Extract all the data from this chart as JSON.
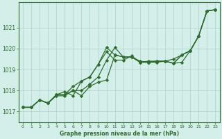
{
  "xlabel": "Graphe pression niveau de la mer (hPa)",
  "xlim": [
    -0.5,
    23.5
  ],
  "ylim": [
    1016.5,
    1022.2
  ],
  "yticks": [
    1017,
    1018,
    1019,
    1020,
    1021
  ],
  "xticks": [
    0,
    1,
    2,
    3,
    4,
    5,
    6,
    7,
    8,
    9,
    10,
    11,
    12,
    13,
    14,
    15,
    16,
    17,
    18,
    19,
    20,
    21,
    22,
    23
  ],
  "bg_color": "#d4eeea",
  "plot_bg_color": "#d4eeea",
  "grid_color": "#aad4cc",
  "line_color": "#2d6e2d",
  "tick_color": "#2d6e2d",
  "spine_color": "#2d6e2d",
  "lines": [
    [
      1017.2,
      1017.2,
      1017.55,
      1017.4,
      1017.75,
      1017.75,
      1018.0,
      1017.75,
      1018.2,
      1018.4,
      1018.5,
      1019.7,
      1019.6,
      1019.6,
      1019.4,
      1019.35,
      1019.35,
      1019.4,
      1019.5,
      1019.7,
      1019.9,
      1020.6,
      1021.8,
      1021.85
    ],
    [
      1017.2,
      1017.2,
      1017.55,
      1017.4,
      1017.8,
      1017.95,
      1017.75,
      1018.45,
      1018.65,
      1019.25,
      1020.05,
      1019.7,
      1019.6,
      1019.6,
      1019.35,
      1019.35,
      1019.4,
      1019.4,
      1019.3,
      1019.35,
      1019.9,
      1020.6,
      1021.8,
      1021.85
    ],
    [
      1017.2,
      1017.2,
      1017.55,
      1017.4,
      1017.8,
      1017.8,
      1018.0,
      1018.0,
      1018.3,
      1018.65,
      1019.45,
      1020.05,
      1019.6,
      1019.6,
      1019.35,
      1019.35,
      1019.4,
      1019.4,
      1019.3,
      1019.7,
      1019.9,
      1020.6,
      1021.8,
      1021.85
    ],
    [
      1017.2,
      1017.2,
      1017.55,
      1017.4,
      1017.8,
      1017.8,
      1018.2,
      1018.45,
      1018.65,
      1019.25,
      1019.85,
      1019.45,
      1019.45,
      1019.65,
      1019.35,
      1019.4,
      1019.4,
      1019.4,
      1019.3,
      1019.7,
      1019.9,
      1020.6,
      1021.8,
      1021.85
    ]
  ]
}
